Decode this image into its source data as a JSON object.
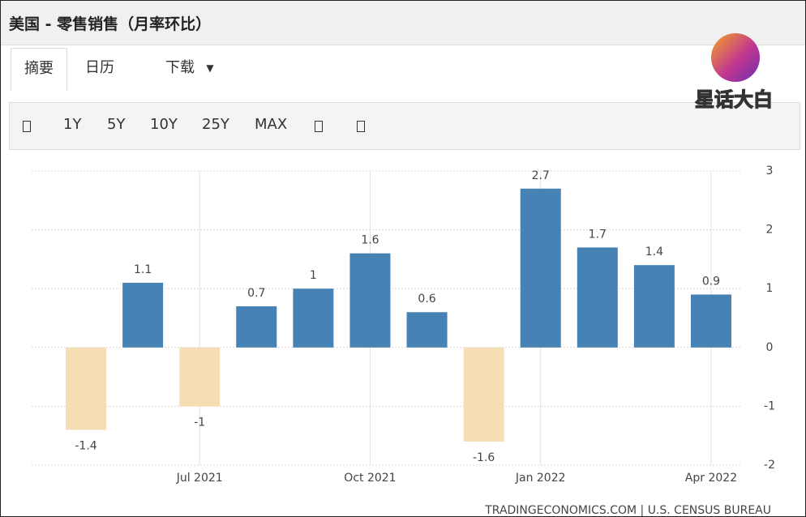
{
  "header": {
    "title": "美国 - 零售销售（月率环比）"
  },
  "tabs": [
    "摘要",
    "日历",
    "下载"
  ],
  "toolbar": [
    "1Y",
    "5Y",
    "10Y",
    "25Y",
    "MAX"
  ],
  "watermark": "星话大白",
  "source": "TRADINGECONOMICS.COM  |  U.S. CENSUS BUREAU",
  "chart_data": {
    "type": "bar",
    "categories": [
      null,
      null,
      "Jul 2021",
      null,
      null,
      "Oct 2021",
      null,
      null,
      "Jan 2022",
      null,
      null,
      "Apr 2022"
    ],
    "values": [
      -1.4,
      1.1,
      -1,
      0.7,
      1,
      1.6,
      0.6,
      -1.6,
      2.7,
      1.7,
      1.4,
      0.9
    ],
    "color": "#4682b4",
    "negative_color": "#f5deb3",
    "ylim": [
      -2,
      3
    ],
    "yticks": [
      -2,
      -1,
      0,
      1,
      2,
      3
    ],
    "grid": true
  }
}
